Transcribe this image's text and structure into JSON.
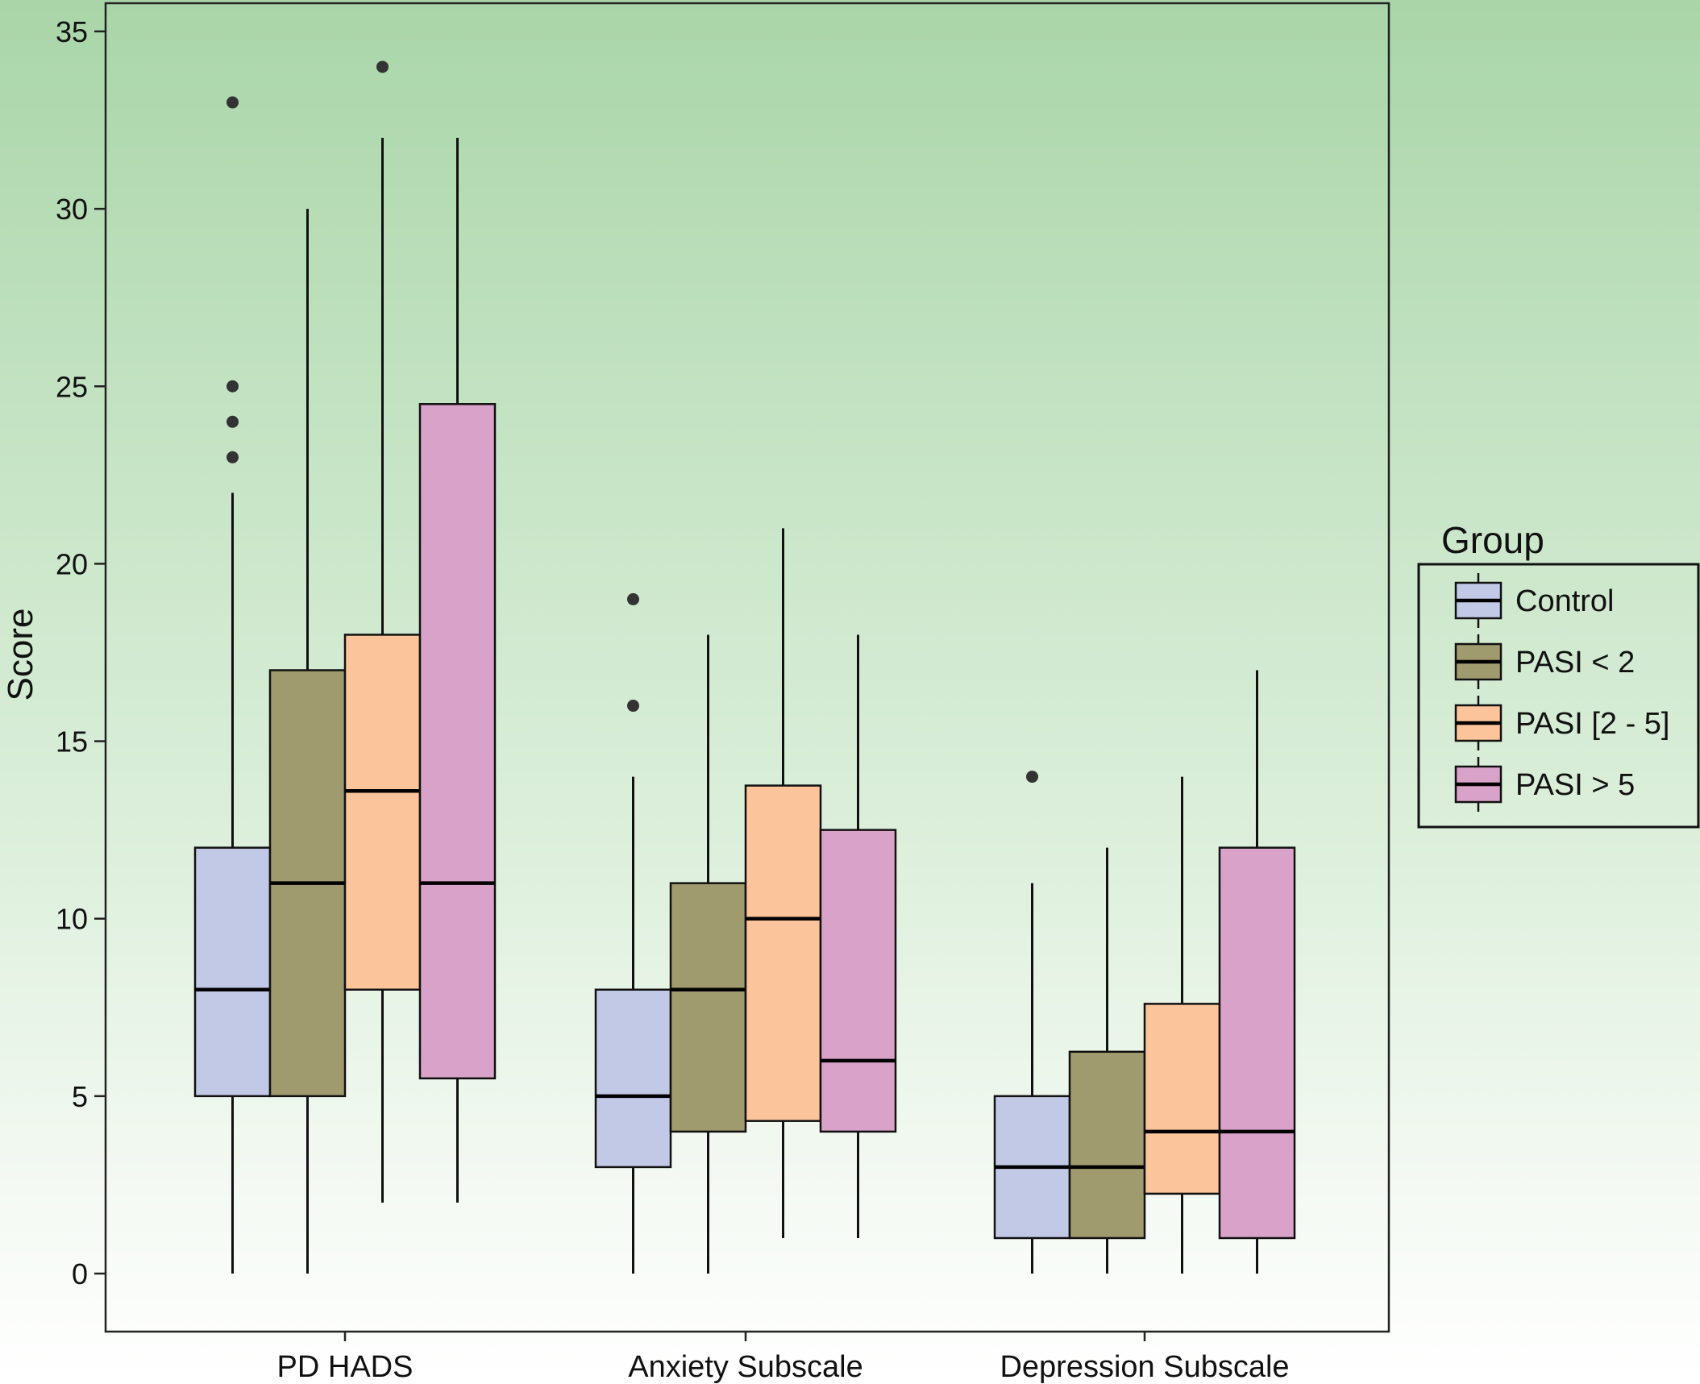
{
  "chart_data": {
    "type": "boxplot",
    "ylabel": "Score",
    "xlabel": "",
    "ylim": [
      -1.6,
      35.6
    ],
    "yticks": [
      0,
      5,
      10,
      15,
      20,
      25,
      30,
      35
    ],
    "grid": false,
    "legend": {
      "title": "Group",
      "position": "right",
      "entries": [
        "Control",
        "PASI < 2",
        "PASI [2 - 5]",
        "PASI > 5"
      ]
    },
    "categories": [
      "PD HADS",
      "Anxiety Subscale",
      "Depression Subscale"
    ],
    "series": [
      {
        "name": "Control",
        "color": "#c2c9e6",
        "boxes": [
          {
            "min": 0,
            "q1": 5,
            "median": 8,
            "q3": 12,
            "max": 22,
            "outliers": [
              23,
              24,
              25,
              33
            ]
          },
          {
            "min": 0,
            "q1": 3,
            "median": 5,
            "q3": 8,
            "max": 14,
            "outliers": [
              16,
              19
            ]
          },
          {
            "min": 0,
            "q1": 1,
            "median": 3,
            "q3": 5,
            "max": 11,
            "outliers": [
              14
            ]
          }
        ]
      },
      {
        "name": "PASI < 2",
        "color": "#a09b6e",
        "boxes": [
          {
            "min": 0,
            "q1": 5,
            "median": 11,
            "q3": 17,
            "max": 30,
            "outliers": []
          },
          {
            "min": 0,
            "q1": 4,
            "median": 8,
            "q3": 11,
            "max": 18,
            "outliers": []
          },
          {
            "min": 0,
            "q1": 1,
            "median": 3,
            "q3": 6.25,
            "max": 12,
            "outliers": []
          }
        ]
      },
      {
        "name": "PASI [2 - 5]",
        "color": "#fbc49a",
        "boxes": [
          {
            "min": 2,
            "q1": 8,
            "median": 13.6,
            "q3": 18,
            "max": 32,
            "outliers": [
              34
            ]
          },
          {
            "min": 1,
            "q1": 4.3,
            "median": 10,
            "q3": 13.75,
            "max": 21,
            "outliers": []
          },
          {
            "min": 0,
            "q1": 2.25,
            "median": 4,
            "q3": 7.6,
            "max": 14,
            "outliers": []
          }
        ]
      },
      {
        "name": "PASI > 5",
        "color": "#d9a3c9",
        "boxes": [
          {
            "min": 2,
            "q1": 5.5,
            "median": 11,
            "q3": 24.5,
            "max": 32,
            "outliers": []
          },
          {
            "min": 1,
            "q1": 4,
            "median": 6,
            "q3": 12.5,
            "max": 18,
            "outliers": []
          },
          {
            "min": 0,
            "q1": 1,
            "median": 4,
            "q3": 12,
            "max": 17,
            "outliers": []
          }
        ]
      }
    ]
  }
}
